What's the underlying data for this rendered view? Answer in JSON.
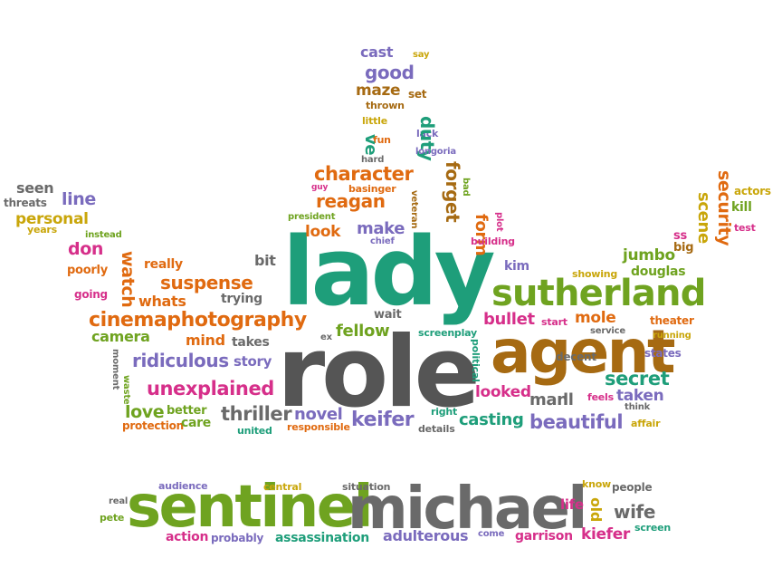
{
  "colors": {
    "teal": "#1e9e7a",
    "olive": "#6fa320",
    "gray": "#6a6a6a",
    "brown": "#a66a12",
    "orange": "#e06a10",
    "purple": "#7a6bbd",
    "magenta": "#d62f8a",
    "yellow": "#c9a60a",
    "darkgray": "#555555"
  },
  "words": [
    {
      "text": "lady"
    },
    {
      "text": "role"
    },
    {
      "text": "agent"
    },
    {
      "text": "sentinel"
    },
    {
      "text": "michael"
    },
    {
      "text": "sutherland"
    },
    {
      "text": "cinemaphotography"
    },
    {
      "text": "character"
    },
    {
      "text": "reagan"
    },
    {
      "text": "ridiculous"
    },
    {
      "text": "unexplained"
    },
    {
      "text": "suspense"
    },
    {
      "text": "thriller"
    },
    {
      "text": "keifer"
    },
    {
      "text": "casting"
    },
    {
      "text": "beautiful"
    },
    {
      "text": "secret"
    },
    {
      "text": "taken"
    },
    {
      "text": "bullet"
    },
    {
      "text": "mole"
    },
    {
      "text": "jumbo"
    },
    {
      "text": "douglas"
    },
    {
      "text": "security"
    },
    {
      "text": "scene"
    },
    {
      "text": "kill"
    },
    {
      "text": "test"
    },
    {
      "text": "actors"
    },
    {
      "text": "big"
    },
    {
      "text": "ss"
    },
    {
      "text": "cast"
    },
    {
      "text": "say"
    },
    {
      "text": "good"
    },
    {
      "text": "maze"
    },
    {
      "text": "set"
    },
    {
      "text": "thrown"
    },
    {
      "text": "little"
    },
    {
      "text": "lack"
    },
    {
      "text": "fun"
    },
    {
      "text": "duty"
    },
    {
      "text": "ve"
    },
    {
      "text": "hard"
    },
    {
      "text": "longoria"
    },
    {
      "text": "forget"
    },
    {
      "text": "bad"
    },
    {
      "text": "guy"
    },
    {
      "text": "basinger"
    },
    {
      "text": "veteran"
    },
    {
      "text": "president"
    },
    {
      "text": "look"
    },
    {
      "text": "make"
    },
    {
      "text": "chief"
    },
    {
      "text": "form"
    },
    {
      "text": "plot"
    },
    {
      "text": "building"
    },
    {
      "text": "kim"
    },
    {
      "text": "showing"
    },
    {
      "text": "bit"
    },
    {
      "text": "seen"
    },
    {
      "text": "threats"
    },
    {
      "text": "line"
    },
    {
      "text": "personal"
    },
    {
      "text": "years"
    },
    {
      "text": "instead"
    },
    {
      "text": "don"
    },
    {
      "text": "watch"
    },
    {
      "text": "really"
    },
    {
      "text": "poorly"
    },
    {
      "text": "going"
    },
    {
      "text": "whats"
    },
    {
      "text": "trying"
    },
    {
      "text": "camera"
    },
    {
      "text": "mind"
    },
    {
      "text": "takes"
    },
    {
      "text": "ex"
    },
    {
      "text": "fellow"
    },
    {
      "text": "wait"
    },
    {
      "text": "screenplay"
    },
    {
      "text": "start"
    },
    {
      "text": "service"
    },
    {
      "text": "running"
    },
    {
      "text": "theater"
    },
    {
      "text": "states"
    },
    {
      "text": "moment"
    },
    {
      "text": "waste"
    },
    {
      "text": "story"
    },
    {
      "text": "political"
    },
    {
      "text": "decent"
    },
    {
      "text": "man"
    },
    {
      "text": "ll"
    },
    {
      "text": "feels"
    },
    {
      "text": "think"
    },
    {
      "text": "affair"
    },
    {
      "text": "looked"
    },
    {
      "text": "love"
    },
    {
      "text": "better"
    },
    {
      "text": "protection"
    },
    {
      "text": "care"
    },
    {
      "text": "united"
    },
    {
      "text": "novel"
    },
    {
      "text": "responsible"
    },
    {
      "text": "right"
    },
    {
      "text": "details"
    },
    {
      "text": "audience"
    },
    {
      "text": "central"
    },
    {
      "text": "situation"
    },
    {
      "text": "know"
    },
    {
      "text": "people"
    },
    {
      "text": "real"
    },
    {
      "text": "pete"
    },
    {
      "text": "life"
    },
    {
      "text": "old"
    },
    {
      "text": "wife"
    },
    {
      "text": "screen"
    },
    {
      "text": "action"
    },
    {
      "text": "probably"
    },
    {
      "text": "assassination"
    },
    {
      "text": "adulterous"
    },
    {
      "text": "come"
    },
    {
      "text": "garrison"
    },
    {
      "text": "kiefer"
    }
  ]
}
